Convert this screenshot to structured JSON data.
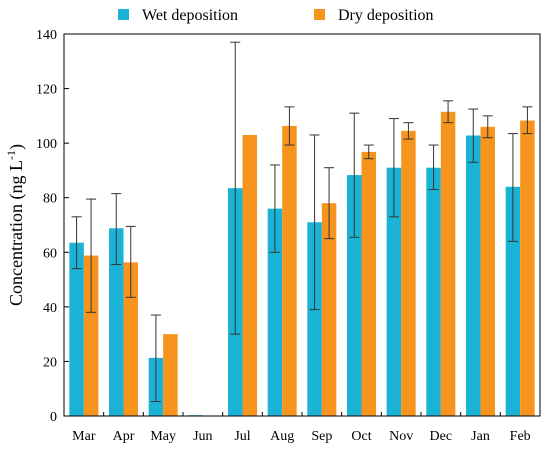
{
  "chart_data": {
    "type": "bar",
    "ylabel": "Concentration (ng L",
    "ylabel_sup": "-1",
    "ylabel_end": ")",
    "xlabel": "",
    "ylim": [
      0,
      140
    ],
    "yticks": [
      0,
      20,
      40,
      60,
      80,
      100,
      120,
      140
    ],
    "ytick_labels": [
      "0",
      "20",
      "40",
      "60",
      "80",
      "100",
      "120",
      "140"
    ],
    "legend_position": "top",
    "categories": [
      "Mar",
      "Apr",
      "May",
      "Jun",
      "Jul",
      "Aug",
      "Sep",
      "Oct",
      "Nov",
      "Dec",
      "Jan",
      "Feb"
    ],
    "series": [
      {
        "name": "Wet deposition",
        "color": "#1ab3d6",
        "values": [
          63.5,
          68.8,
          21.3,
          0.3,
          83.5,
          76.0,
          71.0,
          88.3,
          91.0,
          91.0,
          102.8,
          84.0
        ],
        "error_low": [
          54.0,
          55.5,
          5.3,
          null,
          30.0,
          60.0,
          39.0,
          65.5,
          73.0,
          83.0,
          93.0,
          64.0
        ],
        "error_high": [
          73.0,
          81.5,
          37.0,
          null,
          137.0,
          92.0,
          103.0,
          111.0,
          109.0,
          99.3,
          112.5,
          103.5
        ]
      },
      {
        "name": "Dry deposition",
        "color": "#f7941d",
        "values": [
          58.8,
          56.3,
          30.0,
          0,
          103.0,
          106.3,
          78.0,
          96.8,
          104.5,
          111.5,
          106.0,
          108.3
        ],
        "error_low": [
          38.0,
          43.5,
          null,
          null,
          null,
          99.3,
          65.0,
          94.3,
          101.5,
          107.5,
          102.0,
          103.5
        ],
        "error_high": [
          79.5,
          69.5,
          null,
          null,
          null,
          113.3,
          91.0,
          99.3,
          107.5,
          115.5,
          110.0,
          113.3
        ]
      }
    ]
  }
}
